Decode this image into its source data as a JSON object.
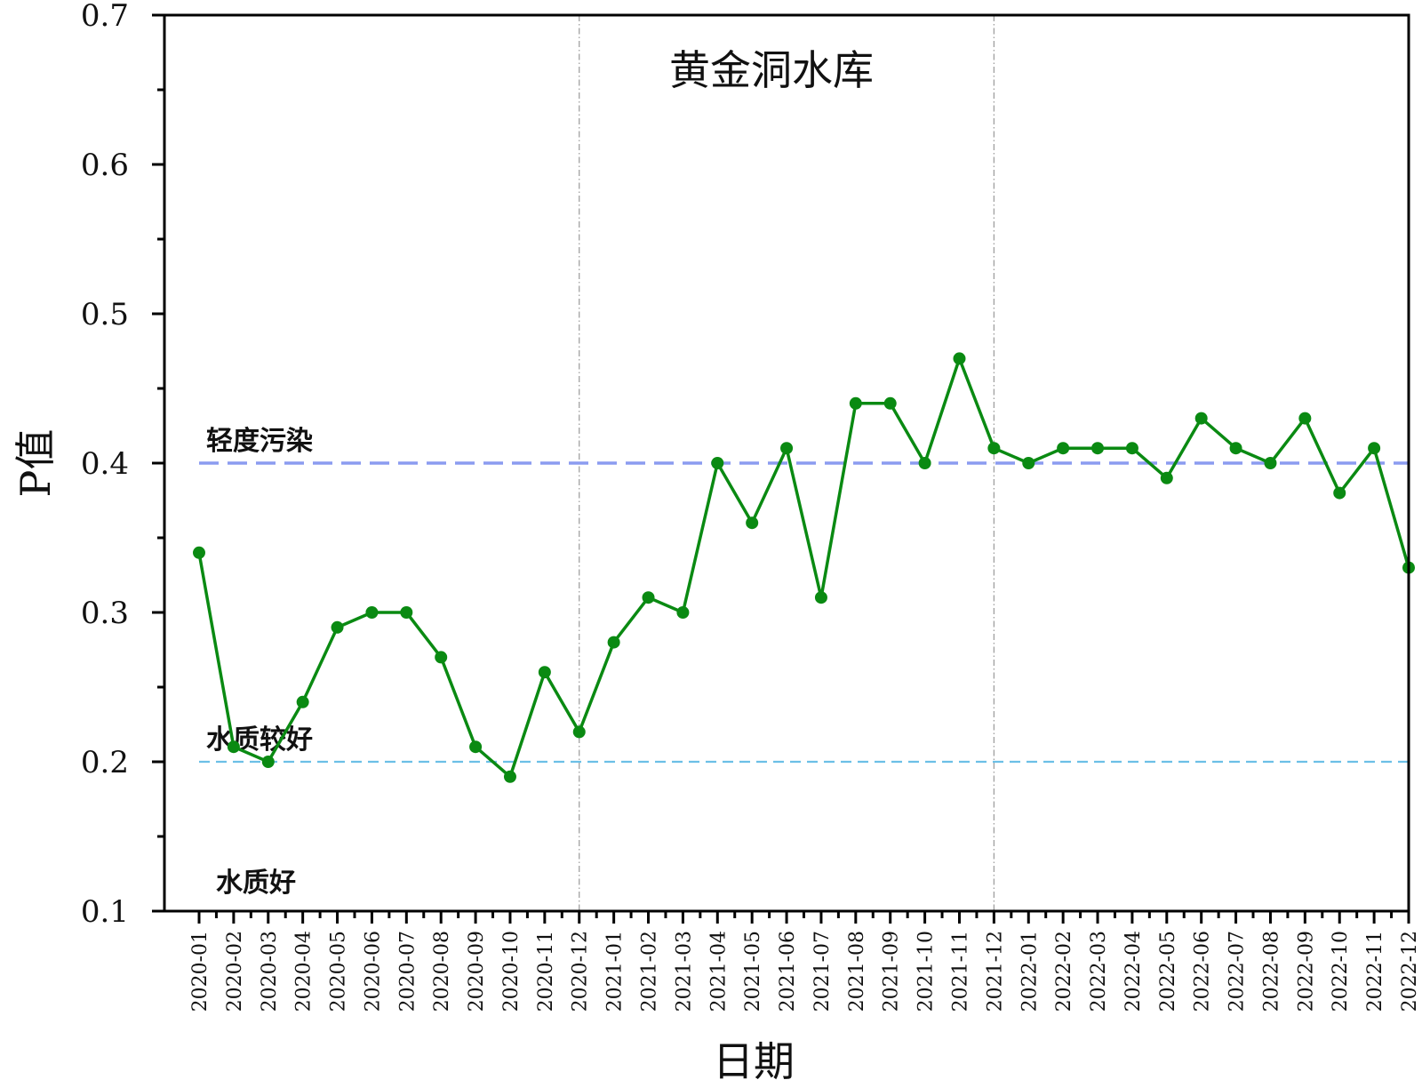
{
  "chart_data": {
    "type": "line",
    "title": "黄金洞水库",
    "xlabel": "日期",
    "ylabel": "P值",
    "ylim": [
      0.1,
      0.7
    ],
    "yticks": [
      "0.1",
      "0.2",
      "0.3",
      "0.4",
      "0.5",
      "0.6",
      "0.7"
    ],
    "grid": false,
    "categories": [
      "2020-01",
      "2020-02",
      "2020-03",
      "2020-04",
      "2020-05",
      "2020-06",
      "2020-07",
      "2020-08",
      "2020-09",
      "2020-10",
      "2020-11",
      "2020-12",
      "2021-01",
      "2021-02",
      "2021-03",
      "2021-04",
      "2021-05",
      "2021-06",
      "2021-07",
      "2021-08",
      "2021-09",
      "2021-10",
      "2021-11",
      "2021-12",
      "2022-01",
      "2022-02",
      "2022-03",
      "2022-04",
      "2022-05",
      "2022-06",
      "2022-07",
      "2022-08",
      "2022-09",
      "2022-10",
      "2022-11",
      "2022-12"
    ],
    "series": [
      {
        "color": "#0a8a12",
        "values": [
          0.34,
          0.21,
          0.2,
          0.24,
          0.29,
          0.3,
          0.3,
          0.27,
          0.21,
          0.19,
          0.26,
          0.22,
          0.28,
          0.31,
          0.3,
          0.4,
          0.36,
          0.41,
          0.31,
          0.44,
          0.44,
          0.4,
          0.47,
          0.41,
          0.4,
          0.41,
          0.41,
          0.41,
          0.39,
          0.43,
          0.41,
          0.4,
          0.43,
          0.38,
          0.41,
          0.33
        ]
      }
    ],
    "reference_lines": [
      {
        "label": "轻度污染",
        "value": 0.4,
        "color": "#8b9cf0"
      },
      {
        "label": "水质较好",
        "value": 0.2,
        "color": "#6cc0e6"
      }
    ],
    "zone_labels": [
      {
        "label": "水质好",
        "value": 0.1
      }
    ],
    "year_dividers": [
      "2020-12",
      "2021-12"
    ],
    "divider_color": "#999999"
  }
}
